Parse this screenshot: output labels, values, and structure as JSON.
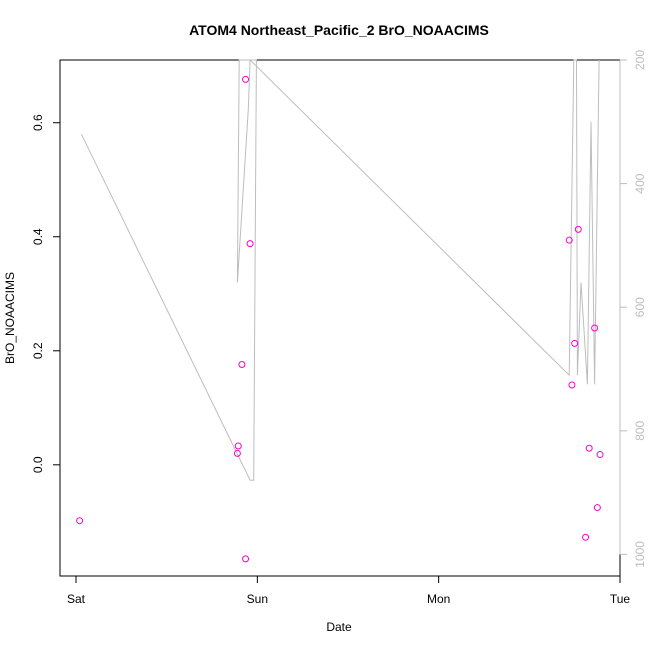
{
  "chart_data": {
    "type": "scatter",
    "title": "ATOM4 Northeast_Pacific_2 BrO_NOAACIMS",
    "xlabel": "Date",
    "ylabel": "BrO_NOAACIMS",
    "x_ticks": [
      "Sat",
      "Sun",
      "Mon",
      "Tue"
    ],
    "x_tick_positions_days": [
      0,
      1,
      2,
      3
    ],
    "ylim": [
      -0.195,
      0.71
    ],
    "y_ticks": [
      0.0,
      0.2,
      0.4,
      0.6
    ],
    "y_tick_labels": [
      "0.0",
      "0.2",
      "0.4",
      "0.6"
    ],
    "y2_reversed": true,
    "y2lim": [
      1035,
      200
    ],
    "y2_ticks": [
      200,
      400,
      600,
      800,
      1000
    ],
    "y2_tick_labels": [
      "200",
      "400",
      "600",
      "800",
      "1000"
    ],
    "colors": {
      "points": "#ff00cc",
      "line": "#bdbdbd",
      "frame": "#000000",
      "right_axis": "#bdbdbd"
    },
    "series": [
      {
        "kind": "points",
        "x": [
          0.02,
          0.89,
          0.895,
          0.915,
          0.935,
          0.935,
          0.96,
          2.72,
          2.735,
          2.75,
          2.77,
          2.81,
          2.83,
          2.86,
          2.875
        ],
        "y": [
          -0.098,
          0.02,
          0.033,
          0.176,
          0.676,
          -0.165,
          0.388,
          0.394,
          0.14,
          0.213,
          0.413,
          -0.127,
          0.029,
          0.24,
          -0.075
        ]
      },
      {
        "kind": "line",
        "axis": "right",
        "x": [
          0.03,
          0.96,
          0.98,
          0.995,
          0.9,
          0.89,
          0.95,
          0.96,
          2.72,
          2.745,
          2.76,
          2.765,
          2.785,
          2.82,
          2.84,
          2.86,
          2.885
        ],
        "y": [
          320,
          880,
          880,
          200,
          200,
          560,
          280,
          200,
          710,
          200,
          200,
          710,
          560,
          725,
          300,
          725,
          200
        ]
      },
      {
        "kind": "points",
        "x": [
          2.89
        ],
        "y": [
          0.018
        ]
      }
    ]
  }
}
